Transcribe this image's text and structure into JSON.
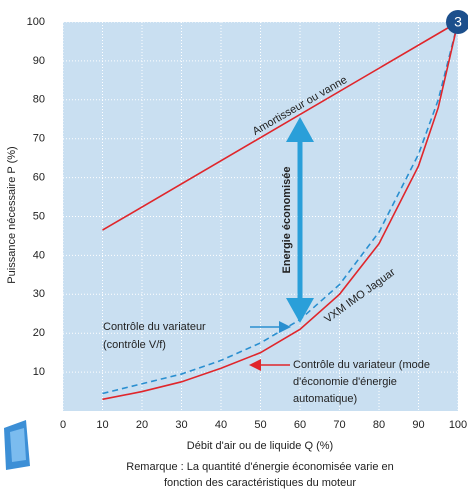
{
  "chart_data": {
    "type": "line",
    "xlabel": "Débit d'air ou de liquide Q (%)",
    "ylabel": "Puissance nécessaire P (%)",
    "xlim": [
      0,
      100
    ],
    "ylim": [
      0,
      100
    ],
    "xticks": [
      0,
      10,
      20,
      30,
      40,
      50,
      60,
      70,
      80,
      90,
      100
    ],
    "yticks": [
      10,
      20,
      30,
      40,
      50,
      60,
      70,
      80,
      90,
      100
    ],
    "grid": true,
    "series": [
      {
        "name": "Amortisseur ou vanne",
        "color": "#e0262b",
        "dash": false,
        "x": [
          10,
          100
        ],
        "values": [
          46.5,
          100
        ]
      },
      {
        "name": "VXM IMO Jaguar",
        "color": "#2a8fd0",
        "dash": true,
        "x": [
          10,
          20,
          30,
          40,
          50,
          60,
          70,
          80,
          90,
          95,
          100
        ],
        "values": [
          4.5,
          7,
          9.5,
          13,
          17.5,
          23.5,
          32.5,
          46,
          66,
          80,
          100
        ]
      },
      {
        "color": "#e0262b",
        "dash": false,
        "x": [
          10,
          20,
          30,
          40,
          50,
          60,
          70,
          80,
          90,
          95,
          100
        ],
        "values": [
          3,
          5,
          7.5,
          11,
          15,
          21,
          30,
          43,
          63,
          78,
          100
        ]
      }
    ],
    "annotations": {
      "saved": "Energie économisée",
      "vf": [
        "Contrôle du variateur",
        "(contrôle V/f)"
      ],
      "auto": [
        "Contrôle du variateur (mode",
        "d'économie d'énergie",
        "automatique)"
      ]
    },
    "badge": "3",
    "note": [
      "Remarque : La quantité d'énergie économisée varie en",
      "fonction des caractéristiques du moteur"
    ]
  }
}
